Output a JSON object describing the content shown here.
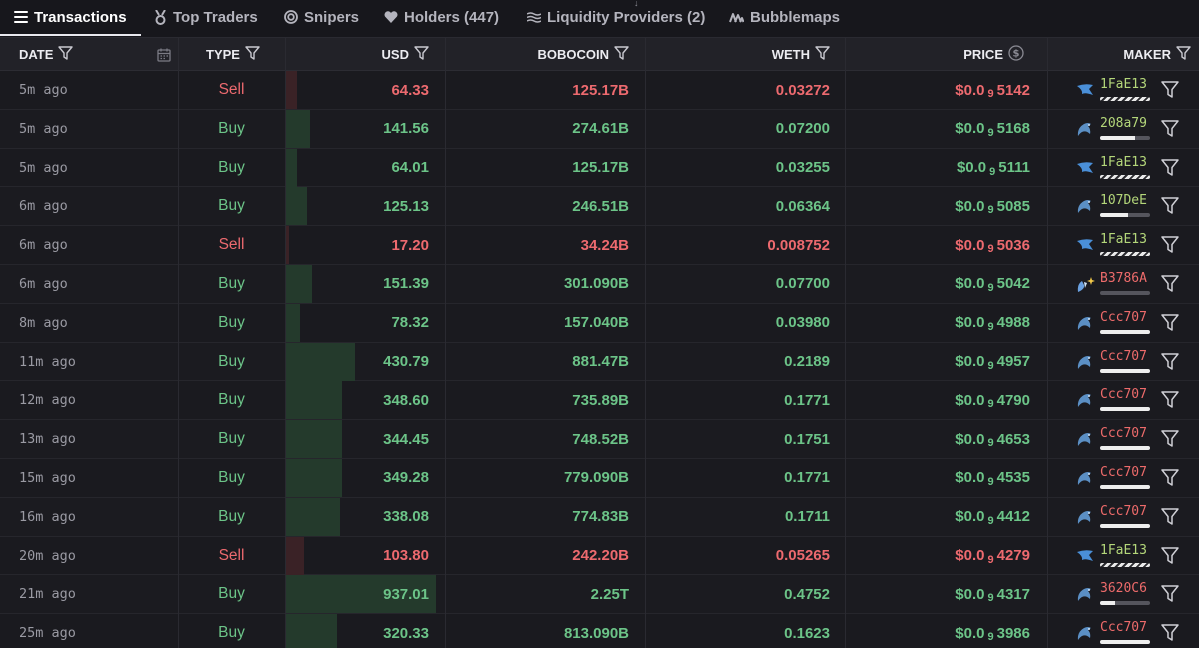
{
  "tabs": [
    {
      "label": "Transactions",
      "icon": "list-icon",
      "active": true
    },
    {
      "label": "Top Traders",
      "icon": "medal-icon",
      "active": false
    },
    {
      "label": "Snipers",
      "icon": "target-icon",
      "active": false
    },
    {
      "label": "Holders (447)",
      "icon": "heart-icon",
      "active": false
    },
    {
      "label": "Liquidity Providers (2)",
      "icon": "waves-icon",
      "active": false
    },
    {
      "label": "Bubblemaps",
      "icon": "bubblemaps-icon",
      "active": false
    }
  ],
  "columns": {
    "date": "DATE",
    "type": "TYPE",
    "usd": "USD",
    "bobocoin": "BOBOCOIN",
    "weth": "WETH",
    "price": "PRICE",
    "maker": "MAKER"
  },
  "colors": {
    "buy": "#6cc488",
    "sell": "#ed6a6f",
    "background": "#17171c"
  },
  "rows": [
    {
      "date": "5m ago",
      "type": "Sell",
      "usd": "64.33",
      "usd_share": 0.07,
      "bobocoin": "125.17B",
      "weth": "0.03272",
      "price_prefix": "$0.0",
      "price_zeros": "9",
      "price_digits": "5142",
      "maker_icon": "shark-icon",
      "maker": "1FaE13",
      "maker_color": "green",
      "maker_bar": "striped",
      "maker_fill": 1.0
    },
    {
      "date": "5m ago",
      "type": "Buy",
      "usd": "141.56",
      "usd_share": 0.16,
      "bobocoin": "274.61B",
      "weth": "0.07200",
      "price_prefix": "$0.0",
      "price_zeros": "9",
      "price_digits": "5168",
      "maker_icon": "dolphin-icon",
      "maker": "208a79",
      "maker_color": "green",
      "maker_bar": "plain",
      "maker_fill": 0.7
    },
    {
      "date": "5m ago",
      "type": "Buy",
      "usd": "64.01",
      "usd_share": 0.07,
      "bobocoin": "125.17B",
      "weth": "0.03255",
      "price_prefix": "$0.0",
      "price_zeros": "9",
      "price_digits": "5111",
      "maker_icon": "shark-icon",
      "maker": "1FaE13",
      "maker_color": "green",
      "maker_bar": "striped",
      "maker_fill": 1.0
    },
    {
      "date": "6m ago",
      "type": "Buy",
      "usd": "125.13",
      "usd_share": 0.14,
      "bobocoin": "246.51B",
      "weth": "0.06364",
      "price_prefix": "$0.0",
      "price_zeros": "9",
      "price_digits": "5085",
      "maker_icon": "dolphin-icon",
      "maker": "107DeE",
      "maker_color": "green",
      "maker_bar": "plain",
      "maker_fill": 0.55
    },
    {
      "date": "6m ago",
      "type": "Sell",
      "usd": "17.20",
      "usd_share": 0.02,
      "bobocoin": "34.24B",
      "weth": "0.008752",
      "price_prefix": "$0.0",
      "price_zeros": "9",
      "price_digits": "5036",
      "maker_icon": "shark-icon",
      "maker": "1FaE13",
      "maker_color": "green",
      "maker_bar": "striped",
      "maker_fill": 1.0
    },
    {
      "date": "6m ago",
      "type": "Buy",
      "usd": "151.39",
      "usd_share": 0.17,
      "bobocoin": "301.090B",
      "weth": "0.07700",
      "price_prefix": "$0.0",
      "price_zeros": "9",
      "price_digits": "5042",
      "maker_icon": "sparkle-fish-icon",
      "maker": "B3786A",
      "maker_color": "red",
      "maker_bar": "plain",
      "maker_fill": 0.0
    },
    {
      "date": "8m ago",
      "type": "Buy",
      "usd": "78.32",
      "usd_share": 0.09,
      "bobocoin": "157.040B",
      "weth": "0.03980",
      "price_prefix": "$0.0",
      "price_zeros": "9",
      "price_digits": "4988",
      "maker_icon": "dolphin-icon",
      "maker": "Ccc707",
      "maker_color": "red",
      "maker_bar": "plain",
      "maker_fill": 1.0
    },
    {
      "date": "11m ago",
      "type": "Buy",
      "usd": "430.79",
      "usd_share": 0.46,
      "bobocoin": "881.47B",
      "weth": "0.2189",
      "price_prefix": "$0.0",
      "price_zeros": "9",
      "price_digits": "4957",
      "maker_icon": "dolphin-icon",
      "maker": "Ccc707",
      "maker_color": "red",
      "maker_bar": "plain",
      "maker_fill": 1.0
    },
    {
      "date": "12m ago",
      "type": "Buy",
      "usd": "348.60",
      "usd_share": 0.37,
      "bobocoin": "735.89B",
      "weth": "0.1771",
      "price_prefix": "$0.0",
      "price_zeros": "9",
      "price_digits": "4790",
      "maker_icon": "dolphin-icon",
      "maker": "Ccc707",
      "maker_color": "red",
      "maker_bar": "plain",
      "maker_fill": 1.0
    },
    {
      "date": "13m ago",
      "type": "Buy",
      "usd": "344.45",
      "usd_share": 0.37,
      "bobocoin": "748.52B",
      "weth": "0.1751",
      "price_prefix": "$0.0",
      "price_zeros": "9",
      "price_digits": "4653",
      "maker_icon": "dolphin-icon",
      "maker": "Ccc707",
      "maker_color": "red",
      "maker_bar": "plain",
      "maker_fill": 1.0
    },
    {
      "date": "15m ago",
      "type": "Buy",
      "usd": "349.28",
      "usd_share": 0.37,
      "bobocoin": "779.090B",
      "weth": "0.1771",
      "price_prefix": "$0.0",
      "price_zeros": "9",
      "price_digits": "4535",
      "maker_icon": "dolphin-icon",
      "maker": "Ccc707",
      "maker_color": "red",
      "maker_bar": "plain",
      "maker_fill": 1.0
    },
    {
      "date": "16m ago",
      "type": "Buy",
      "usd": "338.08",
      "usd_share": 0.36,
      "bobocoin": "774.83B",
      "weth": "0.1711",
      "price_prefix": "$0.0",
      "price_zeros": "9",
      "price_digits": "4412",
      "maker_icon": "dolphin-icon",
      "maker": "Ccc707",
      "maker_color": "red",
      "maker_bar": "plain",
      "maker_fill": 1.0
    },
    {
      "date": "20m ago",
      "type": "Sell",
      "usd": "103.80",
      "usd_share": 0.12,
      "bobocoin": "242.20B",
      "weth": "0.05265",
      "price_prefix": "$0.0",
      "price_zeros": "9",
      "price_digits": "4279",
      "maker_icon": "shark-icon",
      "maker": "1FaE13",
      "maker_color": "green",
      "maker_bar": "striped",
      "maker_fill": 1.0
    },
    {
      "date": "21m ago",
      "type": "Buy",
      "usd": "937.01",
      "usd_share": 1.0,
      "bobocoin": "2.25T",
      "weth": "0.4752",
      "price_prefix": "$0.0",
      "price_zeros": "9",
      "price_digits": "4317",
      "maker_icon": "dolphin-icon",
      "maker": "3620C6",
      "maker_color": "red",
      "maker_bar": "plain",
      "maker_fill": 0.3
    },
    {
      "date": "25m ago",
      "type": "Buy",
      "usd": "320.33",
      "usd_share": 0.34,
      "bobocoin": "813.090B",
      "weth": "0.1623",
      "price_prefix": "$0.0",
      "price_zeros": "9",
      "price_digits": "3986",
      "maker_icon": "dolphin-icon",
      "maker": "Ccc707",
      "maker_color": "red",
      "maker_bar": "plain",
      "maker_fill": 1.0
    }
  ]
}
